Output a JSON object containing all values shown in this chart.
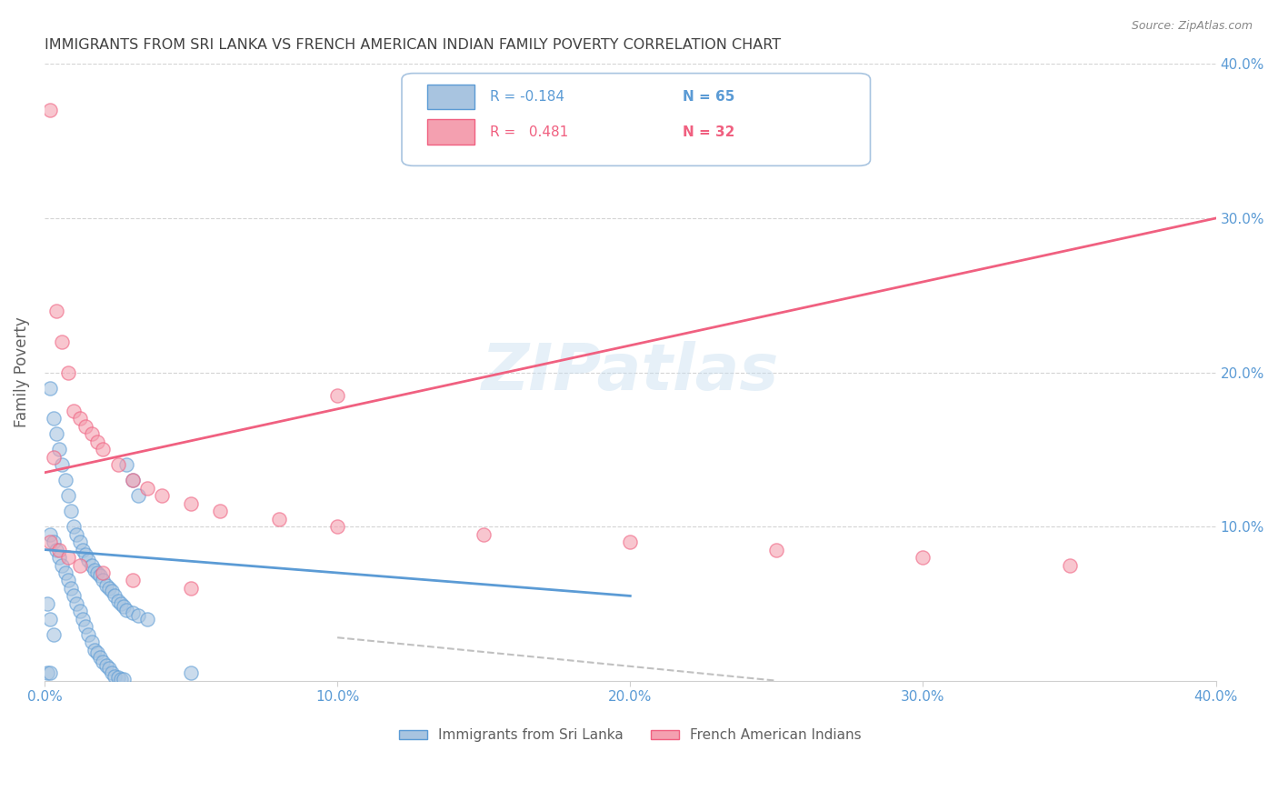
{
  "title": "IMMIGRANTS FROM SRI LANKA VS FRENCH AMERICAN INDIAN FAMILY POVERTY CORRELATION CHART",
  "source": "Source: ZipAtlas.com",
  "ylabel": "Family Poverty",
  "watermark": "ZIPatlas",
  "xlim": [
    0.0,
    0.4
  ],
  "ylim": [
    0.0,
    0.4
  ],
  "xtick_labels": [
    "0.0%",
    "10.0%",
    "20.0%",
    "30.0%",
    "40.0%"
  ],
  "xtick_vals": [
    0.0,
    0.1,
    0.2,
    0.3,
    0.4
  ],
  "ytick_labels": [
    "40.0%",
    "30.0%",
    "20.0%",
    "10.0%"
  ],
  "ytick_vals": [
    0.4,
    0.3,
    0.2,
    0.1
  ],
  "legend1_label": "Immigrants from Sri Lanka",
  "legend2_label": "French American Indians",
  "r1": -0.184,
  "n1": 65,
  "r2": 0.481,
  "n2": 32,
  "color_blue": "#a8c4e0",
  "color_pink": "#f4a0b0",
  "line_blue": "#5b9bd5",
  "line_pink": "#f06080",
  "line_gray_dashed": "#c0c0c0",
  "grid_color": "#d0d0d0",
  "title_color": "#404040",
  "axis_label_color": "#606060",
  "tick_label_color_blue": "#5b9bd5",
  "background_color": "#ffffff",
  "blue_scatter_x": [
    0.002,
    0.003,
    0.004,
    0.005,
    0.006,
    0.007,
    0.008,
    0.009,
    0.01,
    0.011,
    0.012,
    0.013,
    0.014,
    0.015,
    0.016,
    0.017,
    0.018,
    0.019,
    0.02,
    0.021,
    0.022,
    0.023,
    0.024,
    0.025,
    0.026,
    0.027,
    0.028,
    0.03,
    0.032,
    0.035,
    0.002,
    0.003,
    0.004,
    0.005,
    0.006,
    0.007,
    0.008,
    0.009,
    0.01,
    0.011,
    0.012,
    0.013,
    0.014,
    0.015,
    0.016,
    0.017,
    0.018,
    0.019,
    0.02,
    0.021,
    0.022,
    0.023,
    0.024,
    0.025,
    0.026,
    0.027,
    0.028,
    0.03,
    0.032,
    0.05,
    0.001,
    0.002,
    0.003,
    0.001,
    0.002
  ],
  "blue_scatter_y": [
    0.19,
    0.17,
    0.16,
    0.15,
    0.14,
    0.13,
    0.12,
    0.11,
    0.1,
    0.095,
    0.09,
    0.085,
    0.082,
    0.078,
    0.075,
    0.072,
    0.07,
    0.068,
    0.065,
    0.062,
    0.06,
    0.058,
    0.055,
    0.052,
    0.05,
    0.048,
    0.046,
    0.044,
    0.042,
    0.04,
    0.095,
    0.09,
    0.085,
    0.08,
    0.075,
    0.07,
    0.065,
    0.06,
    0.055,
    0.05,
    0.045,
    0.04,
    0.035,
    0.03,
    0.025,
    0.02,
    0.018,
    0.015,
    0.012,
    0.01,
    0.008,
    0.005,
    0.003,
    0.002,
    0.001,
    0.001,
    0.14,
    0.13,
    0.12,
    0.005,
    0.05,
    0.04,
    0.03,
    0.005,
    0.005
  ],
  "pink_scatter_x": [
    0.002,
    0.004,
    0.006,
    0.008,
    0.01,
    0.012,
    0.014,
    0.016,
    0.018,
    0.02,
    0.025,
    0.03,
    0.035,
    0.04,
    0.05,
    0.06,
    0.08,
    0.1,
    0.15,
    0.2,
    0.25,
    0.3,
    0.35,
    0.002,
    0.005,
    0.008,
    0.012,
    0.02,
    0.03,
    0.05,
    0.1,
    0.003
  ],
  "pink_scatter_y": [
    0.37,
    0.24,
    0.22,
    0.2,
    0.175,
    0.17,
    0.165,
    0.16,
    0.155,
    0.15,
    0.14,
    0.13,
    0.125,
    0.12,
    0.115,
    0.11,
    0.105,
    0.1,
    0.095,
    0.09,
    0.085,
    0.08,
    0.075,
    0.09,
    0.085,
    0.08,
    0.075,
    0.07,
    0.065,
    0.06,
    0.185,
    0.145
  ],
  "blue_trend_x": [
    0.0,
    0.2
  ],
  "blue_trend_y": [
    0.085,
    0.055
  ],
  "pink_trend_x": [
    0.0,
    0.4
  ],
  "pink_trend_y": [
    0.135,
    0.3
  ],
  "gray_trend_x": [
    0.1,
    0.25
  ],
  "gray_trend_y": [
    0.028,
    0.0
  ]
}
